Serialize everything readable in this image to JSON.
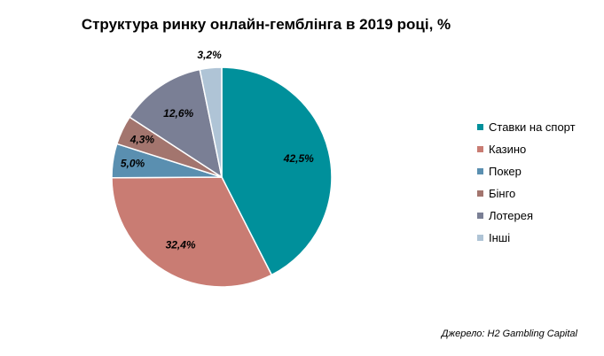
{
  "chart_data": {
    "type": "pie",
    "title": "Структура ринку онлайн-гемблінга в 2019 році, %",
    "slices": [
      {
        "label": "Ставки на спорт",
        "value": 42.5,
        "value_label": "42,5%",
        "color": "#00909B"
      },
      {
        "label": "Казино",
        "value": 32.4,
        "value_label": "32,4%",
        "color": "#C97C73"
      },
      {
        "label": "Покер",
        "value": 5.0,
        "value_label": "5,0%",
        "color": "#5A8FB0"
      },
      {
        "label": "Бінго",
        "value": 4.3,
        "value_label": "4,3%",
        "color": "#A3756E"
      },
      {
        "label": "Лотерея",
        "value": 12.6,
        "value_label": "12,6%",
        "color": "#7A7F95"
      },
      {
        "label": "Інші",
        "value": 3.2,
        "value_label": "3,2%",
        "color": "#AFC4D6"
      }
    ],
    "legend_position": "right"
  },
  "source": "Джерело: H2 Gambling Capital"
}
